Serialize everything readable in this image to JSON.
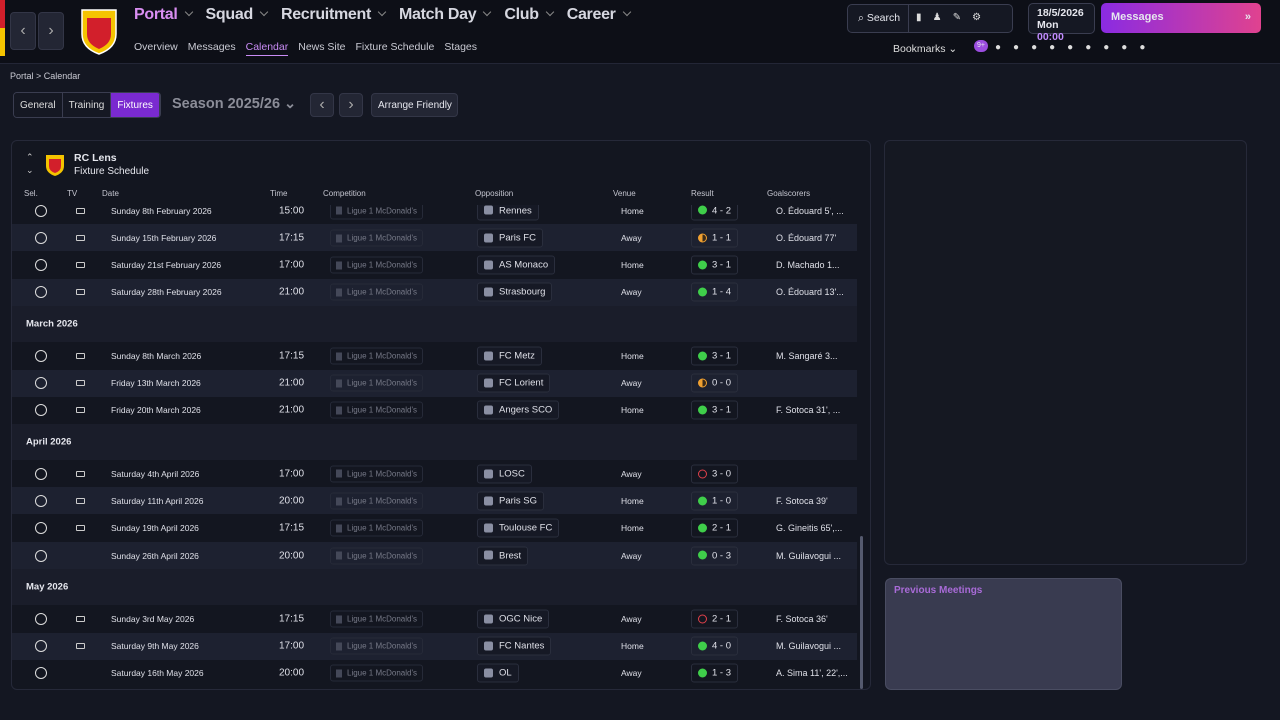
{
  "nav": {
    "menu": [
      "Portal",
      "Squad",
      "Recruitment",
      "Match Day",
      "Club",
      "Career"
    ],
    "submenu": [
      "Overview",
      "Messages",
      "Calendar",
      "News Site",
      "Fixture Schedule",
      "Stages"
    ],
    "active_submenu": 2,
    "search": "Search",
    "date": "18/5/2026",
    "day": "Mon",
    "time": "00:00",
    "messages": "Messages",
    "bookmarks": "Bookmarks",
    "badge": "9+"
  },
  "breadcrumb": [
    "Portal",
    "Calendar"
  ],
  "tabs": [
    "General",
    "Training",
    "Fixtures"
  ],
  "active_tab": 2,
  "season": "Season 2025/26",
  "arrange": "Arrange Friendly",
  "panel": {
    "club": "RC Lens",
    "subtitle": "Fixture Schedule",
    "columns": [
      "Sel.",
      "TV",
      "Date",
      "Time",
      "Competition",
      "Opposition",
      "Venue",
      "Result",
      "Goalscorers"
    ],
    "rows": [
      {
        "date": "Sunday 8th February 2026",
        "time": "15:00",
        "competition": "Ligue 1 McDonald's",
        "opposition": "Rennes",
        "venue": "Home",
        "result": "4 - 2",
        "outcome": "win",
        "tv": true,
        "scorers": "O. Édouard 5', ..."
      },
      {
        "date": "Sunday 15th February 2026",
        "time": "17:15",
        "competition": "Ligue 1 McDonald's",
        "opposition": "Paris FC",
        "venue": "Away",
        "result": "1 - 1",
        "outcome": "draw",
        "tv": true,
        "scorers": "O. Édouard 77'"
      },
      {
        "date": "Saturday 21st February 2026",
        "time": "17:00",
        "competition": "Ligue 1 McDonald's",
        "opposition": "AS Monaco",
        "venue": "Home",
        "result": "3 - 1",
        "outcome": "win",
        "tv": true,
        "scorers": "D. Machado 1..."
      },
      {
        "date": "Saturday 28th February 2026",
        "time": "21:00",
        "competition": "Ligue 1 McDonald's",
        "opposition": "Strasbourg",
        "venue": "Away",
        "result": "1 - 4",
        "outcome": "win",
        "tv": true,
        "scorers": "O. Édouard 13'..."
      },
      {
        "month": "March 2026"
      },
      {
        "date": "Sunday 8th March 2026",
        "time": "17:15",
        "competition": "Ligue 1 McDonald's",
        "opposition": "FC Metz",
        "venue": "Home",
        "result": "3 - 1",
        "outcome": "win",
        "tv": true,
        "scorers": "M. Sangaré 3..."
      },
      {
        "date": "Friday 13th March 2026",
        "time": "21:00",
        "competition": "Ligue 1 McDonald's",
        "opposition": "FC Lorient",
        "venue": "Away",
        "result": "0 - 0",
        "outcome": "draw",
        "tv": true
      },
      {
        "date": "Friday 20th March 2026",
        "time": "21:00",
        "competition": "Ligue 1 McDonald's",
        "opposition": "Angers SCO",
        "venue": "Home",
        "result": "3 - 1",
        "outcome": "win",
        "tv": true,
        "scorers": "F. Sotoca 31', ..."
      },
      {
        "month": "April 2026"
      },
      {
        "date": "Saturday 4th April 2026",
        "time": "17:00",
        "competition": "Ligue 1 McDonald's",
        "opposition": "LOSC",
        "venue": "Away",
        "result": "3 - 0",
        "outcome": "loss",
        "tv": true
      },
      {
        "date": "Saturday 11th April 2026",
        "time": "20:00",
        "competition": "Ligue 1 McDonald's",
        "opposition": "Paris SG",
        "venue": "Home",
        "result": "1 - 0",
        "outcome": "win",
        "tv": true,
        "scorers": "F. Sotoca 39'"
      },
      {
        "date": "Sunday 19th April 2026",
        "time": "17:15",
        "competition": "Ligue 1 McDonald's",
        "opposition": "Toulouse FC",
        "venue": "Home",
        "result": "2 - 1",
        "outcome": "win",
        "tv": true,
        "scorers": "G. Gineitis 65',..."
      },
      {
        "date": "Sunday 26th April 2026",
        "time": "20:00",
        "competition": "Ligue 1 McDonald's",
        "opposition": "Brest",
        "venue": "Away",
        "result": "0 - 3",
        "outcome": "win",
        "tv": false,
        "scorers": "M. Guilavogui ..."
      },
      {
        "month": "May 2026"
      },
      {
        "date": "Sunday 3rd May 2026",
        "time": "17:15",
        "competition": "Ligue 1 McDonald's",
        "opposition": "OGC Nice",
        "venue": "Away",
        "result": "2 - 1",
        "outcome": "loss",
        "tv": true,
        "scorers": "F. Sotoca 36'"
      },
      {
        "date": "Saturday 9th May 2026",
        "time": "17:00",
        "competition": "Ligue 1 McDonald's",
        "opposition": "FC Nantes",
        "venue": "Home",
        "result": "4 - 0",
        "outcome": "win",
        "tv": true,
        "scorers": "M. Guilavogui ..."
      },
      {
        "date": "Saturday 16th May 2026",
        "time": "20:00",
        "competition": "Ligue 1 McDonald's",
        "opposition": "OL",
        "venue": "Away",
        "result": "1 - 3",
        "outcome": "win",
        "tv": false,
        "scorers": "A. Sima 11', 22',..."
      }
    ]
  },
  "side": {
    "previous_meetings": "Previous Meetings"
  }
}
